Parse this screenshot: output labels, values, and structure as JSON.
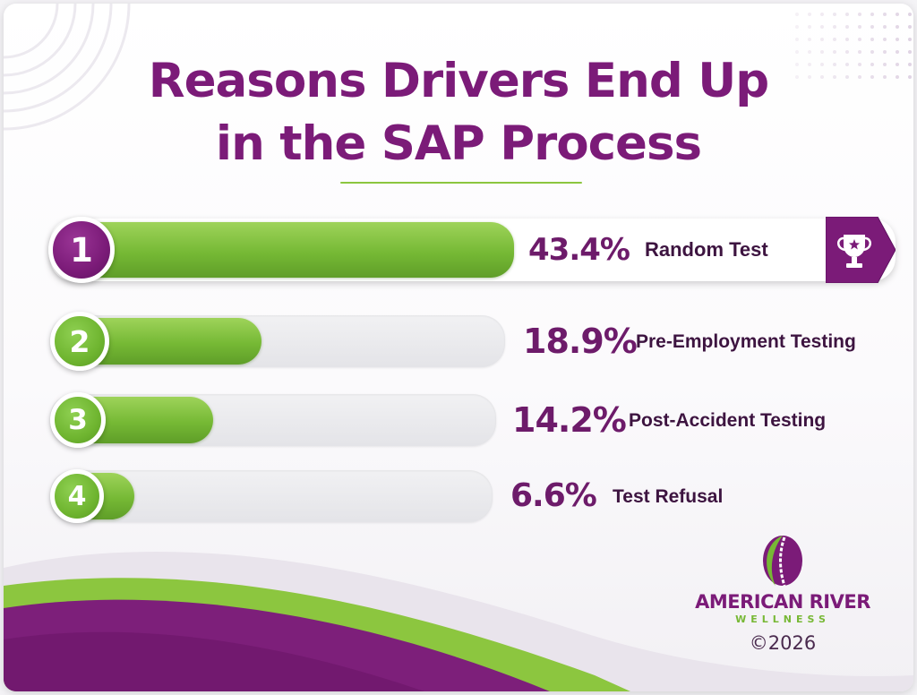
{
  "title_lines": [
    "Reasons Drivers End Up",
    "in the SAP Process"
  ],
  "chart_data": {
    "type": "bar",
    "title": "Reasons Drivers End Up in the SAP Process",
    "orientation": "horizontal",
    "ranks": [
      "1",
      "2",
      "3",
      "4"
    ],
    "categories": [
      "Random Test",
      "Pre-Employment Testing",
      "Post-Accident Testing",
      "Test Refusal"
    ],
    "values": [
      43.4,
      18.9,
      14.2,
      6.6
    ],
    "value_labels": [
      "43.4%",
      "18.9%",
      "14.2%",
      "6.6%"
    ],
    "unit": "%",
    "xlim": [
      0,
      50
    ],
    "grid": false,
    "legend": "none"
  },
  "brand": {
    "name": "AMERICAN RIVER",
    "subtitle": "WELLNESS",
    "copyright": "©2026",
    "icon": "spine-leaf-logo"
  },
  "colors": {
    "brand_purple": "#7b1b78",
    "brand_green": "#77b835",
    "label_dark": "#3d1440"
  },
  "icons": {
    "top_rank": "trophy-icon"
  }
}
